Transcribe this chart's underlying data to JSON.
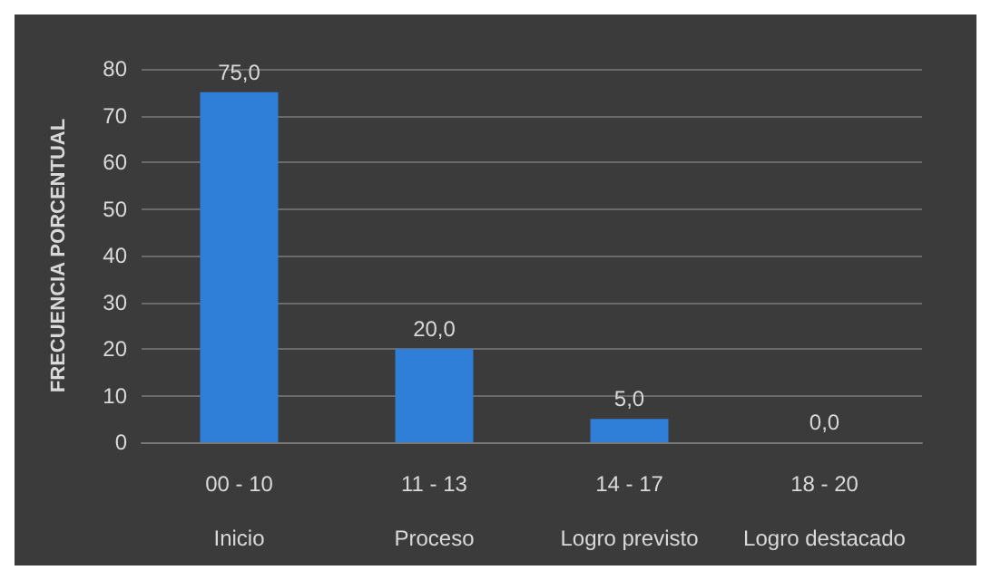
{
  "chart_data": {
    "type": "bar",
    "ylabel": "FRECUENCIA PORCENTUAL",
    "categories": [
      "00 - 10\nInicio",
      "11 - 13\nProceso",
      "14 - 17\nLogro previsto",
      "18 - 20\nLogro destacado"
    ],
    "values": [
      75,
      20,
      5,
      0
    ],
    "value_labels": [
      "75,0",
      "20,0",
      "5,0",
      "0,0"
    ],
    "color": "#2f7fd8",
    "ylim": [
      0,
      80
    ],
    "yticks": [
      0,
      10,
      20,
      30,
      40,
      50,
      60,
      70,
      80
    ],
    "grid": "y"
  }
}
